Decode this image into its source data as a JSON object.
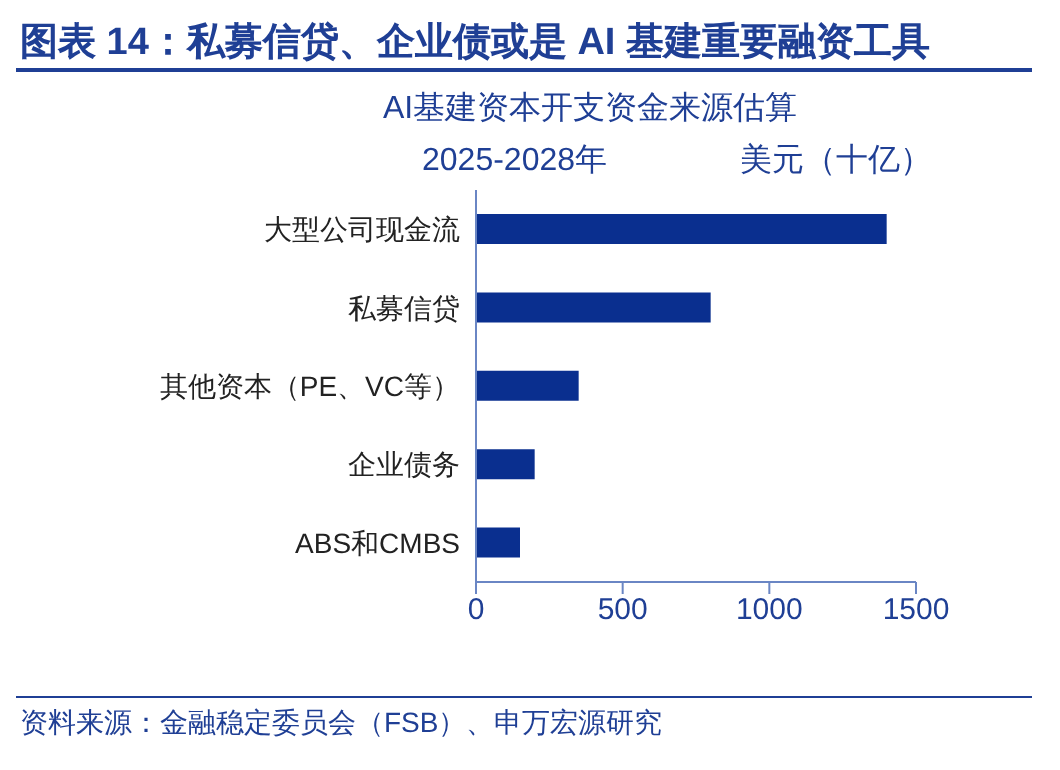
{
  "chart_data": {
    "type": "bar",
    "orientation": "horizontal",
    "title": "图表 14：私募信贷、企业债或是 AI 基建重要融资工具",
    "subtitle": "AI基建资本开支资金来源估算",
    "xlabel": "美元（十亿）",
    "categories": [
      "大型公司现金流",
      "私募信贷",
      "其他资本（PE、VC等）",
      "企业债务",
      "ABS和CMBS"
    ],
    "values": [
      1400,
      800,
      350,
      200,
      150
    ],
    "color": "#0a2f8f",
    "xlim": [
      0,
      1500
    ],
    "xticks": [
      0,
      500,
      1000,
      1500
    ],
    "annotations": [
      "2025-2028年",
      "资料来源：金融稳定委员会（FSB）、申万宏源研究"
    ]
  }
}
